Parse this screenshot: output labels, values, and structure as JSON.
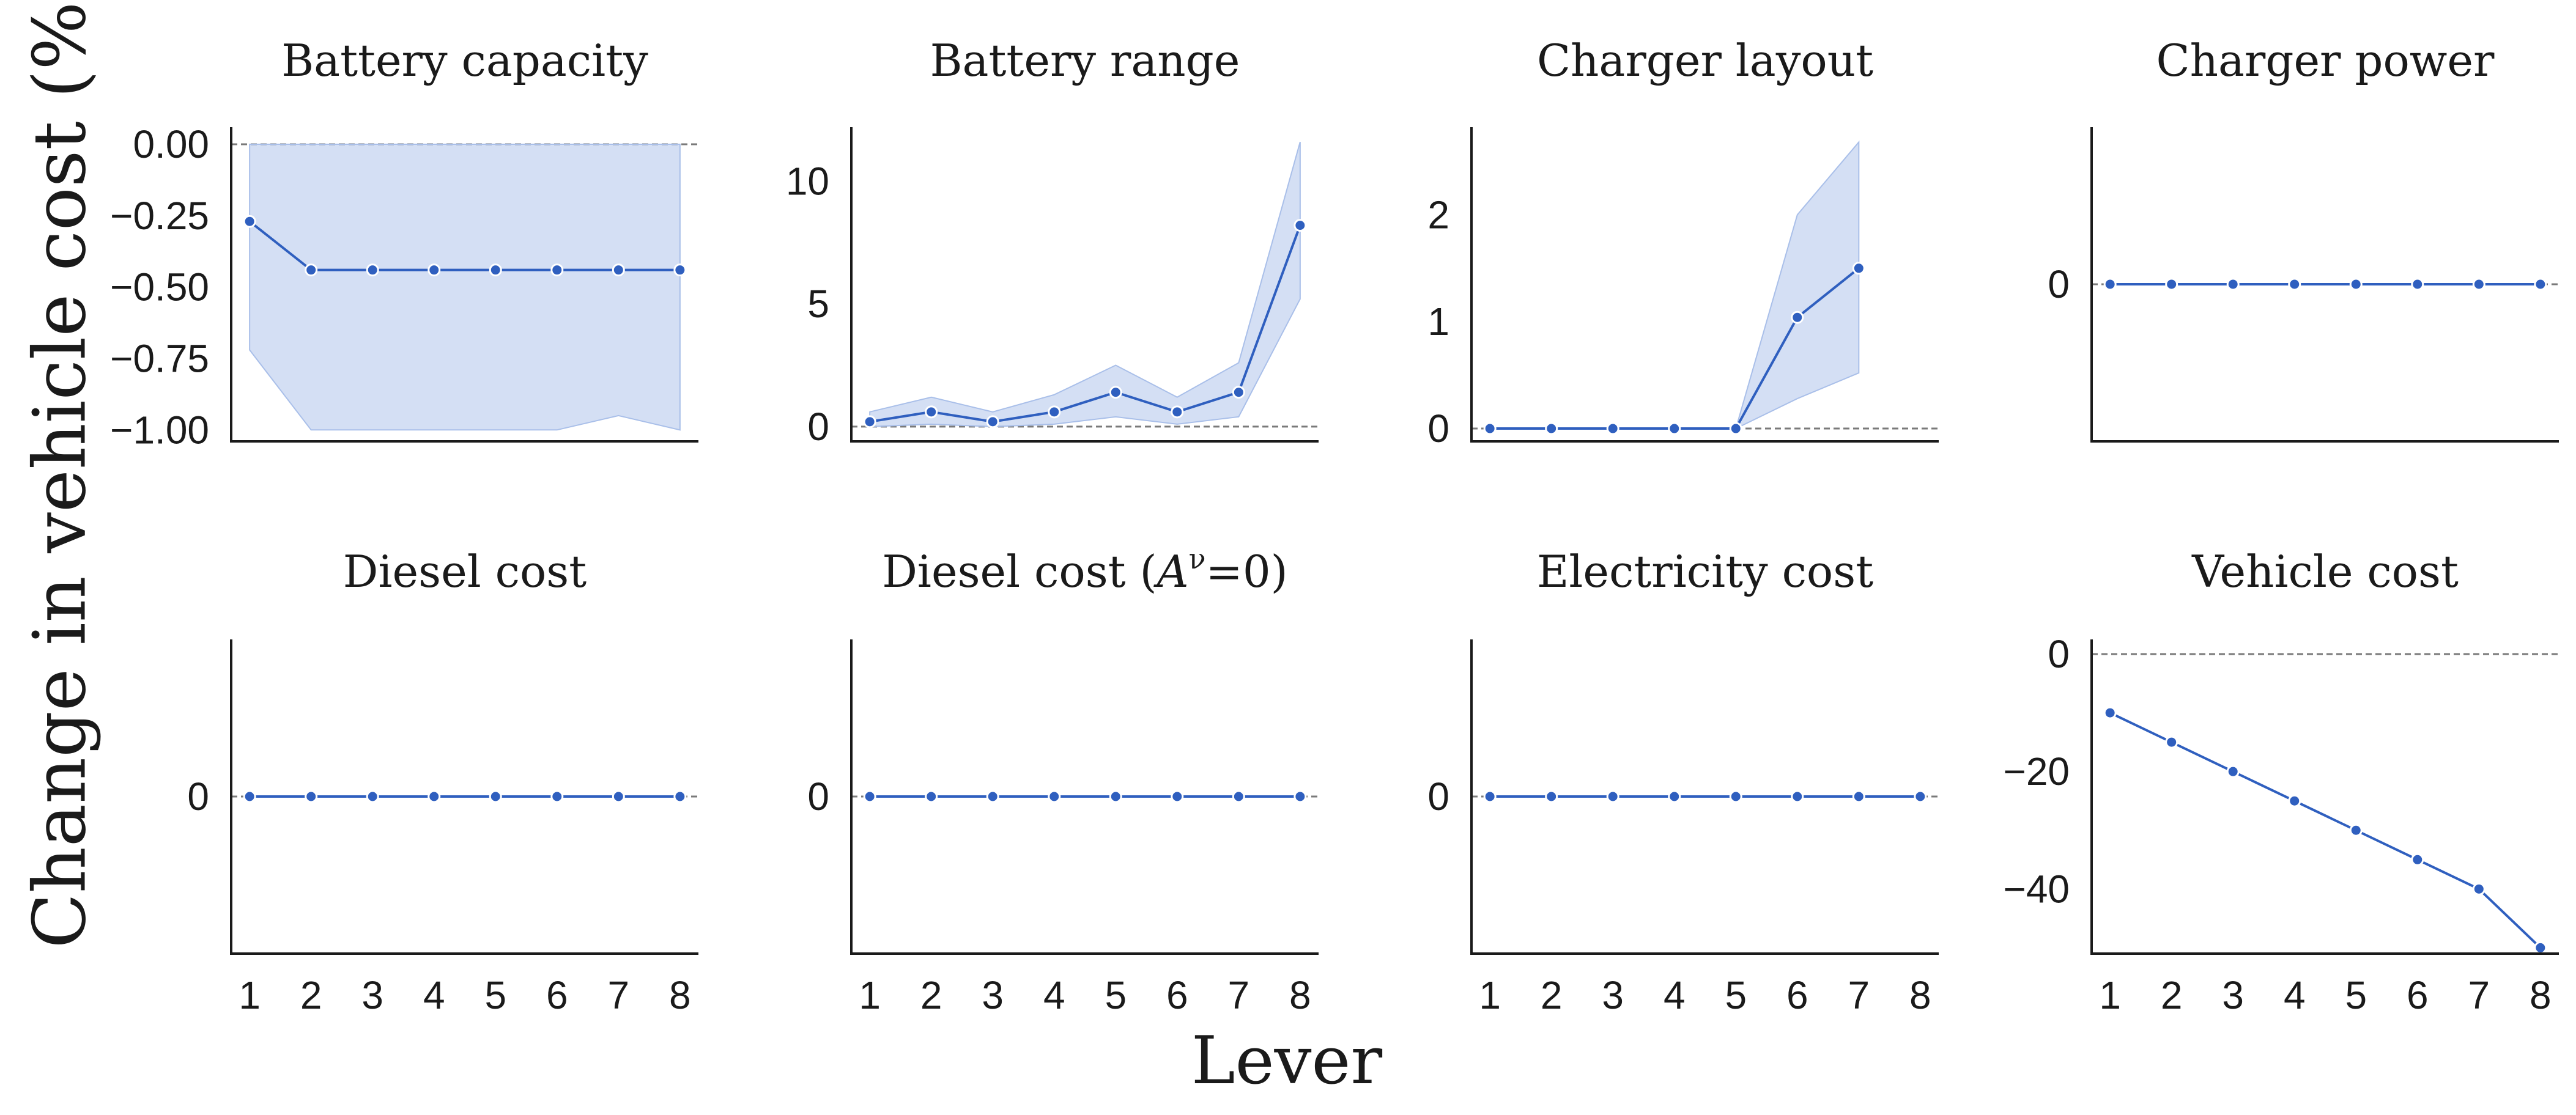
{
  "figure": {
    "ylabel": "Change in vehicle cost (%)",
    "xlabel": "Lever",
    "line_color": "#2f5fbf",
    "band_color": "#a9bfe9"
  },
  "chart_data": [
    {
      "type": "line",
      "title": "Battery capacity",
      "x": [
        1,
        2,
        3,
        4,
        5,
        6,
        7,
        8
      ],
      "y": [
        -0.27,
        -0.44,
        -0.44,
        -0.44,
        -0.44,
        -0.44,
        -0.44,
        -0.44
      ],
      "lower": [
        -0.72,
        -1.0,
        -1.0,
        -1.0,
        -1.0,
        -1.0,
        -0.95,
        -1.0
      ],
      "upper": [
        0.0,
        0.0,
        0.0,
        0.0,
        0.0,
        0.0,
        0.0,
        0.0
      ],
      "ylim": [
        -1.04,
        0.06
      ],
      "yticks": [
        0.0,
        -0.25,
        -0.5,
        -0.75,
        -1.0
      ],
      "yticklabels": [
        "0.00",
        "−0.25",
        "−0.50",
        "−0.75",
        "−1.00"
      ],
      "xticks_shown": false
    },
    {
      "type": "line",
      "title": "Battery range",
      "x": [
        1,
        2,
        3,
        4,
        5,
        6,
        7,
        8
      ],
      "y": [
        0.2,
        0.6,
        0.2,
        0.6,
        1.4,
        0.6,
        1.4,
        8.2
      ],
      "lower": [
        0.0,
        0.1,
        0.0,
        0.1,
        0.4,
        0.1,
        0.4,
        5.2
      ],
      "upper": [
        0.6,
        1.2,
        0.6,
        1.3,
        2.5,
        1.2,
        2.6,
        11.6
      ],
      "ylim": [
        -0.6,
        12.2
      ],
      "yticks": [
        0,
        5,
        10
      ],
      "yticklabels": [
        "0",
        "5",
        "10"
      ],
      "xticks_shown": false
    },
    {
      "type": "line",
      "title": "Charger layout",
      "x": [
        1,
        2,
        3,
        4,
        5,
        6,
        7
      ],
      "y": [
        0,
        0,
        0,
        0,
        0,
        1.04,
        1.5
      ],
      "lower": [
        0,
        0,
        0,
        0,
        0,
        0.28,
        0.52
      ],
      "upper": [
        0,
        0,
        0,
        0,
        0,
        2.0,
        2.68
      ],
      "ylim": [
        -0.12,
        2.82
      ],
      "yticks": [
        0,
        1,
        2
      ],
      "yticklabels": [
        "0",
        "1",
        "2"
      ],
      "xticks_shown": false
    },
    {
      "type": "line",
      "title": "Charger power",
      "x": [
        1,
        2,
        3,
        4,
        5,
        6,
        7,
        8
      ],
      "y": [
        0,
        0,
        0,
        0,
        0,
        0,
        0,
        0
      ],
      "ylim": [
        -1.0,
        1.0
      ],
      "yticks": [
        0
      ],
      "yticklabels": [
        "0"
      ],
      "xticks_shown": false
    },
    {
      "type": "line",
      "title": "Diesel cost",
      "x": [
        1,
        2,
        3,
        4,
        5,
        6,
        7,
        8
      ],
      "y": [
        0,
        0,
        0,
        0,
        0,
        0,
        0,
        0
      ],
      "ylim": [
        -1.0,
        1.0
      ],
      "yticks": [
        0
      ],
      "yticklabels": [
        "0"
      ],
      "xticks_shown": true,
      "xticklabels": [
        "1",
        "2",
        "3",
        "4",
        "5",
        "6",
        "7",
        "8"
      ]
    },
    {
      "type": "line",
      "title": "Diesel cost (Aν=0)",
      "title_base": "Diesel cost (",
      "title_italic": "A",
      "title_sup": "ν",
      "title_end": "=0)",
      "x": [
        1,
        2,
        3,
        4,
        5,
        6,
        7,
        8
      ],
      "y": [
        0,
        0,
        0,
        0,
        0,
        0,
        0,
        0
      ],
      "ylim": [
        -1.0,
        1.0
      ],
      "yticks": [
        0
      ],
      "yticklabels": [
        "0"
      ],
      "xticks_shown": true,
      "xticklabels": [
        "1",
        "2",
        "3",
        "4",
        "5",
        "6",
        "7",
        "8"
      ]
    },
    {
      "type": "line",
      "title": "Electricity cost",
      "x": [
        1,
        2,
        3,
        4,
        5,
        6,
        7,
        8
      ],
      "y": [
        0,
        0,
        0,
        0,
        0,
        0,
        0,
        0
      ],
      "ylim": [
        -1.0,
        1.0
      ],
      "yticks": [
        0
      ],
      "yticklabels": [
        "0"
      ],
      "xticks_shown": true,
      "xticklabels": [
        "1",
        "2",
        "3",
        "4",
        "5",
        "6",
        "7",
        "8"
      ]
    },
    {
      "type": "line",
      "title": "Vehicle cost",
      "x": [
        1,
        2,
        3,
        4,
        5,
        6,
        7,
        8
      ],
      "y": [
        -10,
        -15,
        -20,
        -25,
        -30,
        -35,
        -40,
        -50
      ],
      "ylim": [
        -51,
        2.5
      ],
      "yticks": [
        0,
        -20,
        -40
      ],
      "yticklabels": [
        "0",
        "−20",
        "−40"
      ],
      "xticks_shown": true,
      "xticklabels": [
        "1",
        "2",
        "3",
        "4",
        "5",
        "6",
        "7",
        "8"
      ]
    }
  ]
}
